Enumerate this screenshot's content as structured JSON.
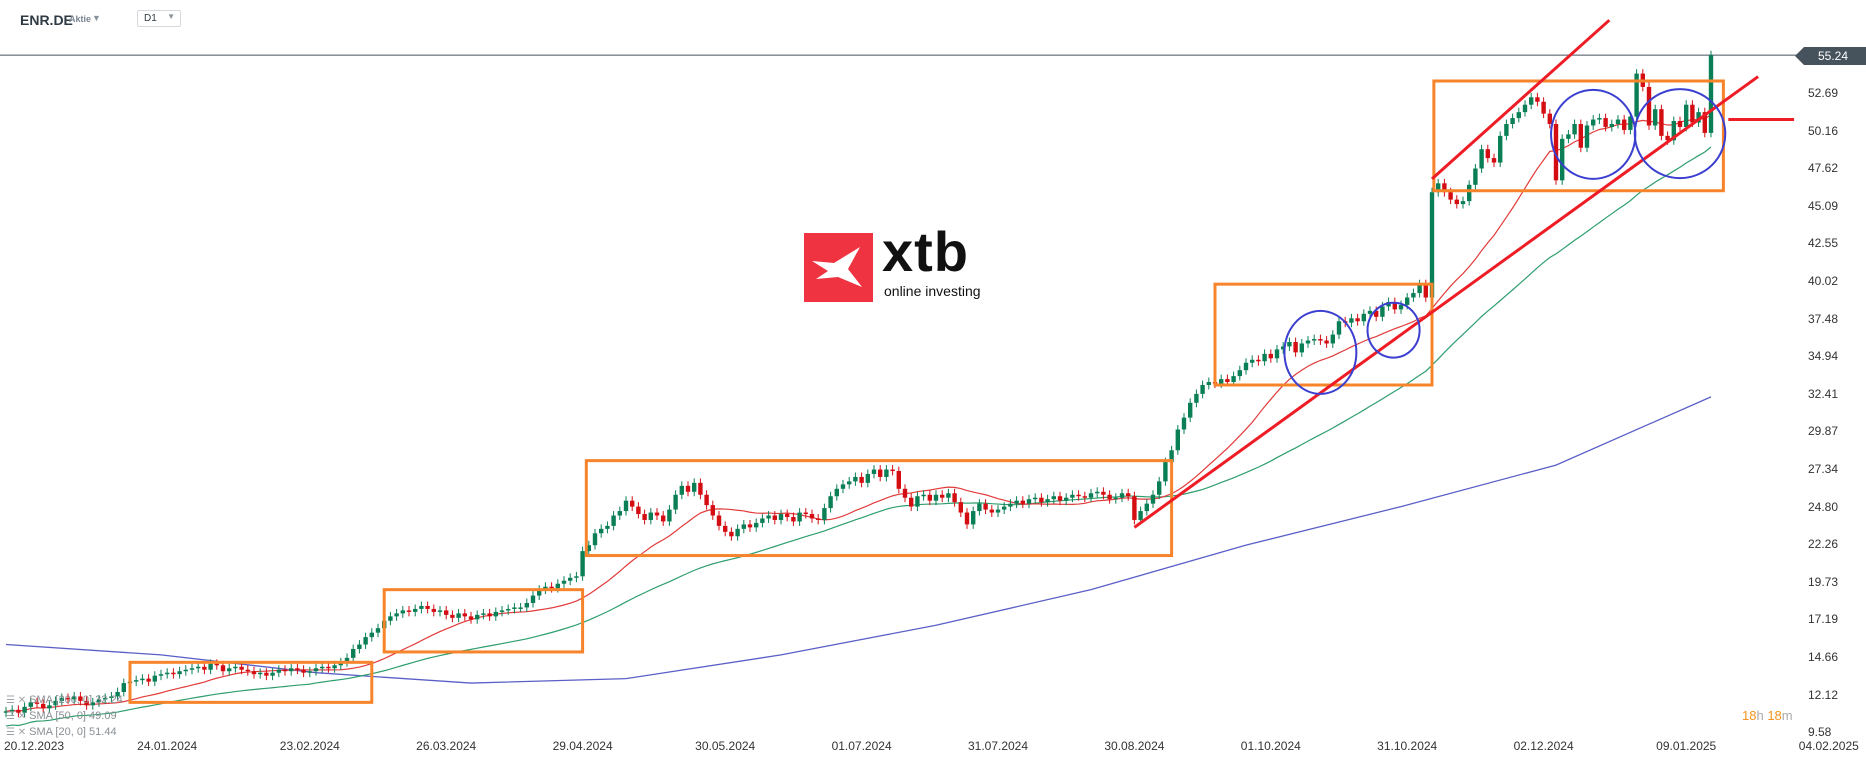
{
  "header": {
    "symbol": "ENR.DE",
    "instrument_type": "Aktie",
    "timeframe": "D1"
  },
  "logo": {
    "brand": "xtb",
    "tagline": "online investing",
    "color": "#ef3340"
  },
  "current_price": "55.24",
  "countdown": {
    "hours": "18",
    "h": "h",
    "minutes": "18",
    "m": "m"
  },
  "legend": [
    {
      "label": "SMA [200, 0] 32.24",
      "color": "#5b5fc7"
    },
    {
      "label": "SMA [50, 0] 49.09",
      "color": "#2e9e6e"
    },
    {
      "label": "SMA [20, 0] 51.44",
      "color": "#e23b3b"
    }
  ],
  "chart_data": {
    "type": "candlestick",
    "symbol": "ENR.DE",
    "colors": {
      "up": "#0a7f55",
      "down": "#d40d12",
      "sma20": "#e23b3b",
      "sma50": "#2e9e6e",
      "sma200": "#5b5fc7",
      "boxes": "#f7842a",
      "trendlines": "#ee1c25",
      "circles": "#3b3fd0"
    },
    "ylim": [
      9.58,
      55.24
    ],
    "price_ticks": [
      "52.69",
      "50.16",
      "47.62",
      "45.09",
      "42.55",
      "40.02",
      "37.48",
      "34.94",
      "32.41",
      "29.87",
      "27.34",
      "24.80",
      "22.26",
      "19.73",
      "17.19",
      "14.66",
      "12.12",
      "9.58"
    ],
    "date_ticks": [
      {
        "label": "20.12.2023",
        "idx": 4.5
      },
      {
        "label": "24.01.2024",
        "idx": 26
      },
      {
        "label": "23.02.2024",
        "idx": 49
      },
      {
        "label": "26.03.2024",
        "idx": 71
      },
      {
        "label": "29.04.2024",
        "idx": 93
      },
      {
        "label": "30.05.2024",
        "idx": 116
      },
      {
        "label": "01.07.2024",
        "idx": 138
      },
      {
        "label": "31.07.2024",
        "idx": 160
      },
      {
        "label": "30.08.2024",
        "idx": 182
      },
      {
        "label": "01.10.2024",
        "idx": 204
      },
      {
        "label": "31.10.2024",
        "idx": 226
      },
      {
        "label": "02.12.2024",
        "idx": 248
      },
      {
        "label": "09.01.2025",
        "idx": 271
      },
      {
        "label": "04.02.2025",
        "idx": 294
      }
    ],
    "closes": [
      11.0,
      11.1,
      10.9,
      11.3,
      11.6,
      11.5,
      11.2,
      11.4,
      11.7,
      11.9,
      11.8,
      12.0,
      11.7,
      11.4,
      11.6,
      11.8,
      11.9,
      12.0,
      12.3,
      12.9,
      13.0,
      13.1,
      13.2,
      13.0,
      13.4,
      13.5,
      13.6,
      13.5,
      13.7,
      13.8,
      13.9,
      14.0,
      13.8,
      14.2,
      14.1,
      13.7,
      13.9,
      14.0,
      13.8,
      13.7,
      13.5,
      13.6,
      13.4,
      13.6,
      13.8,
      13.7,
      13.9,
      13.8,
      13.6,
      13.7,
      13.9,
      14.0,
      13.9,
      14.1,
      14.3,
      14.6,
      15.2,
      15.5,
      16.0,
      16.3,
      16.6,
      17.1,
      17.4,
      17.6,
      17.8,
      17.7,
      17.9,
      18.1,
      17.9,
      17.7,
      17.8,
      17.5,
      17.3,
      17.6,
      17.4,
      17.2,
      17.5,
      17.6,
      17.4,
      17.7,
      17.8,
      17.9,
      18.0,
      18.0,
      18.3,
      18.8,
      19.2,
      19.4,
      19.3,
      19.6,
      19.8,
      20.0,
      20.1,
      21.8,
      22.2,
      23.0,
      23.3,
      23.5,
      24.2,
      24.5,
      25.2,
      24.8,
      24.3,
      23.9,
      24.4,
      24.2,
      23.8,
      24.6,
      25.6,
      26.2,
      25.8,
      26.4,
      25.6,
      24.9,
      24.2,
      23.5,
      23.1,
      22.8,
      23.3,
      23.6,
      23.4,
      23.7,
      24.0,
      24.2,
      23.9,
      24.3,
      24.1,
      23.8,
      24.4,
      24.3,
      24.0,
      23.9,
      24.7,
      25.5,
      26.0,
      26.3,
      26.5,
      26.8,
      26.4,
      27.0,
      27.3,
      26.8,
      27.3,
      27.2,
      26.0,
      25.4,
      24.8,
      25.5,
      25.6,
      25.2,
      25.6,
      25.4,
      25.7,
      25.1,
      24.4,
      23.6,
      24.5,
      25.0,
      24.6,
      24.4,
      24.6,
      24.8,
      25.0,
      25.2,
      25.0,
      25.3,
      25.4,
      25.1,
      25.3,
      25.5,
      25.2,
      25.4,
      25.6,
      25.5,
      25.4,
      25.7,
      25.8,
      25.6,
      25.3,
      25.4,
      25.7,
      25.5,
      23.9,
      24.5,
      25.0,
      25.6,
      26.5,
      27.8,
      28.6,
      30.0,
      30.8,
      31.8,
      32.4,
      33.0,
      33.2,
      33.1,
      33.4,
      33.2,
      33.6,
      34.0,
      34.5,
      34.7,
      34.6,
      35.1,
      34.8,
      35.4,
      35.6,
      35.9,
      35.2,
      35.8,
      36.0,
      36.1,
      36.0,
      35.8,
      36.4,
      37.3,
      37.2,
      37.5,
      37.3,
      37.8,
      38.0,
      37.6,
      38.3,
      38.6,
      38.1,
      38.4,
      38.9,
      39.2,
      39.8,
      38.9,
      46.0,
      46.6,
      46.0,
      45.5,
      45.2,
      45.4,
      46.5,
      47.6,
      48.9,
      48.3,
      48.0,
      49.8,
      50.6,
      51.0,
      51.4,
      51.9,
      52.4,
      52.1,
      51.3,
      50.6,
      46.8,
      49.6,
      49.9,
      50.6,
      49.0,
      50.5,
      50.9,
      51.0,
      50.4,
      50.6,
      50.9,
      50.2,
      51.1,
      54.0,
      53.1,
      50.5,
      51.6,
      49.8,
      49.5,
      50.8,
      50.4,
      51.9,
      50.7,
      51.4,
      50.0,
      55.24
    ],
    "sma200_every_25": [
      15.5,
      14.8,
      13.6,
      12.9,
      13.2,
      14.8,
      16.8,
      19.2,
      22.2,
      24.8,
      27.6,
      32.2
    ],
    "boxes": [
      {
        "idx": [
          20,
          59
        ],
        "price": [
          11.6,
          14.3
        ]
      },
      {
        "idx": [
          61,
          93
        ],
        "price": [
          15.0,
          19.2
        ]
      },
      {
        "idx": [
          93.6,
          188
        ],
        "price": [
          21.5,
          27.9
        ]
      },
      {
        "idx": [
          195,
          230
        ],
        "price": [
          33.0,
          39.8
        ]
      },
      {
        "idx": [
          230.3,
          277
        ],
        "price": [
          46.1,
          53.5
        ]
      }
    ],
    "trendlines": [
      {
        "from": [
          182,
          23.4
        ],
        "to": [
          282.6,
          53.8
        ]
      },
      {
        "from": [
          230,
          46.9
        ],
        "to": [
          258.6,
          57.6
        ]
      },
      {
        "from": [
          277.8,
          50.9
        ],
        "to": [
          288.4,
          50.9
        ]
      }
    ],
    "circles": [
      {
        "idx": 212,
        "price": 35.2,
        "r_idx": 5.8,
        "r_price": 2.8
      },
      {
        "idx": 223.8,
        "price": 36.7,
        "r_idx": 4.2,
        "r_price": 1.85
      },
      {
        "idx": 256,
        "price": 49.9,
        "r_idx": 6.8,
        "r_price": 3.0
      },
      {
        "idx": 270,
        "price": 49.95,
        "r_idx": 7.3,
        "r_price": 3.0
      }
    ]
  }
}
